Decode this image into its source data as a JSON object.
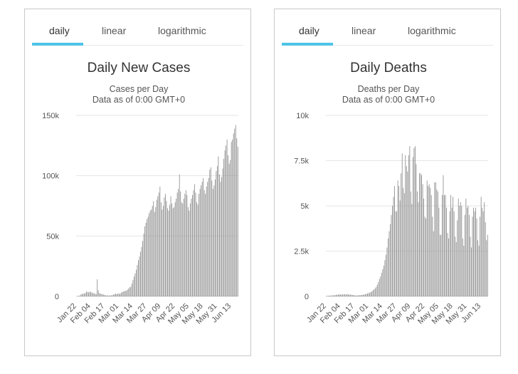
{
  "tabs": [
    "daily",
    "linear",
    "logarithmic"
  ],
  "chart_data": [
    {
      "type": "bar",
      "title": "Daily New Cases",
      "subtitle": "Cases per Day",
      "subtitle2": "Data as of 0:00 GMT+0",
      "yticks": [
        0,
        50000,
        100000,
        150000
      ],
      "ytick_labels": [
        "0",
        "50k",
        "100k",
        "150k"
      ],
      "ylim": [
        0,
        150000
      ],
      "xtick_labels": [
        "Jan 22",
        "Feb 04",
        "Feb 17",
        "Mar 01",
        "Mar 14",
        "Mar 27",
        "Apr 09",
        "Apr 22",
        "May 05",
        "May 18",
        "May 31",
        "Jun 13"
      ],
      "xtick_day_index": [
        0,
        13,
        26,
        39,
        52,
        65,
        78,
        91,
        104,
        117,
        130,
        143
      ],
      "values": [
        100,
        100,
        500,
        700,
        1800,
        2000,
        2200,
        2300,
        2800,
        3900,
        3700,
        3200,
        3900,
        3700,
        3200,
        2800,
        2600,
        2100,
        2000,
        14100,
        5100,
        2700,
        2300,
        1800,
        1900,
        1300,
        1100,
        700,
        900,
        600,
        700,
        700,
        800,
        1000,
        1500,
        1800,
        2300,
        1900,
        2000,
        2500,
        2100,
        2900,
        3500,
        4000,
        4300,
        4500,
        4800,
        5500,
        6500,
        7500,
        8000,
        10500,
        13500,
        16500,
        19000,
        22000,
        26000,
        30000,
        33000,
        37000,
        41000,
        46000,
        52000,
        58000,
        61000,
        64000,
        66000,
        69000,
        71000,
        72000,
        75000,
        79000,
        70000,
        74000,
        80000,
        83000,
        86000,
        91000,
        78000,
        72000,
        75000,
        82000,
        85000,
        79000,
        73000,
        71000,
        76000,
        83000,
        77000,
        73000,
        74000,
        78000,
        81000,
        86000,
        89000,
        101000,
        87000,
        78000,
        77000,
        81000,
        85000,
        88000,
        84000,
        74000,
        71000,
        77000,
        81000,
        84000,
        88000,
        93000,
        86000,
        78000,
        76000,
        85000,
        89000,
        92000,
        95000,
        98000,
        88000,
        85000,
        91000,
        95000,
        98000,
        105000,
        107000,
        96000,
        89000,
        92000,
        97000,
        104000,
        108000,
        116000,
        101000,
        95000,
        99000,
        106000,
        114000,
        121000,
        125000,
        130000,
        117000,
        110000,
        113000,
        128000,
        130000,
        135000,
        139000,
        142000,
        131000,
        124000
      ]
    },
    {
      "type": "bar",
      "title": "Daily Deaths",
      "subtitle": "Deaths per Day",
      "subtitle2": "Data as of 0:00 GMT+0",
      "yticks": [
        0,
        2500,
        5000,
        7500,
        10000
      ],
      "ytick_labels": [
        "0",
        "2.5k",
        "5k",
        "7.5k",
        "10k"
      ],
      "ylim": [
        0,
        10000
      ],
      "xtick_labels": [
        "Jan 22",
        "Feb 04",
        "Feb 17",
        "Mar 01",
        "Mar 14",
        "Mar 27",
        "Apr 09",
        "Apr 22",
        "May 05",
        "May 18",
        "May 31",
        "Jun 13"
      ],
      "xtick_day_index": [
        0,
        13,
        26,
        39,
        52,
        65,
        78,
        91,
        104,
        117,
        130,
        143
      ],
      "values": [
        20,
        25,
        30,
        40,
        45,
        50,
        55,
        60,
        70,
        80,
        90,
        100,
        110,
        100,
        95,
        105,
        110,
        115,
        100,
        120,
        110,
        100,
        100,
        90,
        80,
        70,
        60,
        50,
        40,
        50,
        60,
        70,
        70,
        80,
        90,
        100,
        120,
        140,
        160,
        180,
        200,
        240,
        270,
        330,
        380,
        440,
        520,
        640,
        790,
        960,
        1100,
        1300,
        1500,
        1700,
        2000,
        2300,
        2700,
        3200,
        3600,
        4000,
        4500,
        5000,
        5500,
        6100,
        4700,
        4700,
        6400,
        6100,
        5300,
        6800,
        7900,
        6000,
        5700,
        7800,
        7200,
        6900,
        7800,
        8300,
        5800,
        5100,
        7700,
        8200,
        8300,
        7300,
        5800,
        5200,
        6800,
        6800,
        6700,
        6200,
        5400,
        4400,
        4300,
        6400,
        6100,
        6200,
        6000,
        5600,
        4400,
        3600,
        6300,
        6300,
        5900,
        5800,
        4900,
        3400,
        3400,
        5600,
        6700,
        5600,
        5600,
        4900,
        3500,
        3200,
        4700,
        5600,
        4900,
        5500,
        4700,
        3300,
        3000,
        4200,
        5400,
        5000,
        5200,
        5000,
        3200,
        2800,
        4500,
        5400,
        4900,
        5000,
        4500,
        3300,
        2700,
        4400,
        4900,
        4700,
        4900,
        4300,
        3100,
        2800,
        4400,
        5500,
        4900,
        4700,
        5200,
        4100,
        3100,
        3400
      ]
    }
  ]
}
